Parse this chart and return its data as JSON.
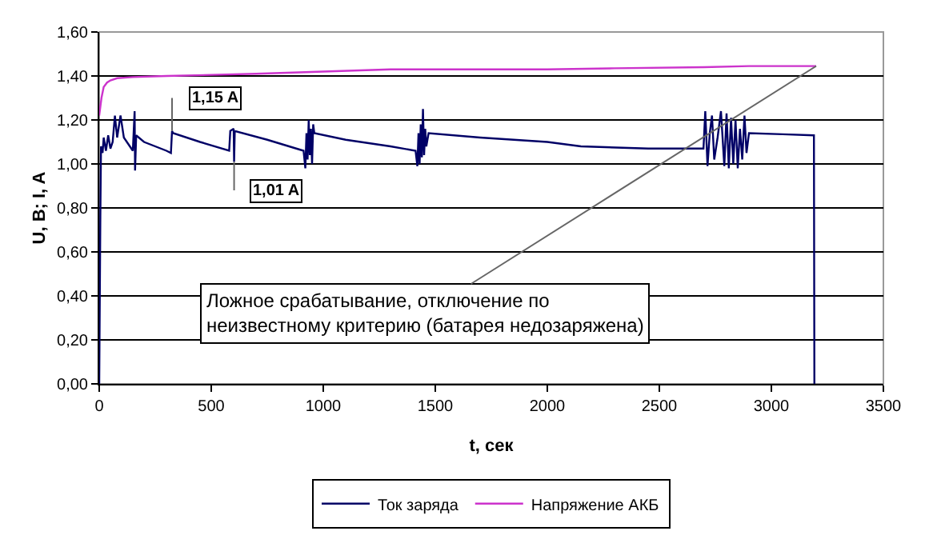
{
  "chart_data": {
    "type": "line",
    "xlabel": "t, сек",
    "ylabel": "U, B; I, A",
    "xlim": [
      0,
      3500
    ],
    "xticks": [
      0,
      500,
      1000,
      1500,
      2000,
      2500,
      3000,
      3500
    ],
    "ylim": [
      0,
      1.6
    ],
    "yticks": [
      {
        "value": 0,
        "label": "0,00"
      },
      {
        "value": 0.2,
        "label": "0,20"
      },
      {
        "value": 0.4,
        "label": "0,40"
      },
      {
        "value": 0.6,
        "label": "0,60"
      },
      {
        "value": 0.8,
        "label": "0,80"
      },
      {
        "value": 1.0,
        "label": "1,00"
      },
      {
        "value": 1.2,
        "label": "1,20"
      },
      {
        "value": 1.4,
        "label": "1,40"
      },
      {
        "value": 1.6,
        "label": "1,60"
      }
    ],
    "grid": "y",
    "legend": "bottom",
    "series": [
      {
        "name": "Ток заряда",
        "color": "#000066",
        "x": [
          0,
          5,
          8,
          15,
          20,
          30,
          40,
          50,
          60,
          70,
          80,
          95,
          110,
          150,
          158,
          160,
          165,
          200,
          300,
          320,
          325,
          330,
          450,
          580,
          585,
          600,
          602,
          605,
          750,
          912,
          920,
          925,
          930,
          935,
          940,
          945,
          950,
          955,
          960,
          1100,
          1300,
          1412,
          1420,
          1425,
          1430,
          1435,
          1440,
          1445,
          1450,
          1455,
          1460,
          1470,
          1700,
          2000,
          2150,
          2450,
          2697,
          2705,
          2715,
          2725,
          2735,
          2745,
          2760,
          2775,
          2790,
          2800,
          2810,
          2820,
          2830,
          2840,
          2850,
          2860,
          2870,
          2880,
          2889,
          2900,
          3050,
          3190,
          3192
        ],
        "values": [
          0,
          0.76,
          1.08,
          1.05,
          1.12,
          1.06,
          1.13,
          1.07,
          1.1,
          1.22,
          1.12,
          1.22,
          1.12,
          1.06,
          1.24,
          0.97,
          1.13,
          1.1,
          1.06,
          1.05,
          1.15,
          1.14,
          1.1,
          1.06,
          1.15,
          1.16,
          1.01,
          1.15,
          1.11,
          1.06,
          0.98,
          1.14,
          1.02,
          1.2,
          1.04,
          1.16,
          1.0,
          1.18,
          1.14,
          1.11,
          1.08,
          1.06,
          0.99,
          1.14,
          1.0,
          1.18,
          1.03,
          1.25,
          1.04,
          1.16,
          1.08,
          1.14,
          1.12,
          1.1,
          1.08,
          1.07,
          1.07,
          1.24,
          0.99,
          1.14,
          1.22,
          1.02,
          1.12,
          1.24,
          0.99,
          1.23,
          0.98,
          1.21,
          1.0,
          1.2,
          0.98,
          1.16,
          1.02,
          1.22,
          1.05,
          1.14,
          1.135,
          1.13,
          0
        ]
      },
      {
        "name": "Напряжение АКБ",
        "color": "#cc33cc",
        "x": [
          0,
          10,
          20,
          35,
          50,
          80,
          150,
          300,
          700,
          1000,
          1300,
          2000,
          2300,
          2700,
          2900,
          3200
        ],
        "values": [
          1.22,
          1.3,
          1.35,
          1.37,
          1.38,
          1.39,
          1.395,
          1.4,
          1.41,
          1.42,
          1.43,
          1.43,
          1.435,
          1.44,
          1.445,
          1.445
        ]
      }
    ],
    "annotations": [
      {
        "text": "1,15 A",
        "x": 325,
        "y": 1.15
      },
      {
        "text": "1,01 A",
        "x": 602,
        "y": 1.01
      },
      {
        "text": "Ложное срабатывание, отключение по\nнеизвестному критерию (батарея недозаряжена)",
        "x": 3200,
        "y": 1.445
      }
    ]
  }
}
